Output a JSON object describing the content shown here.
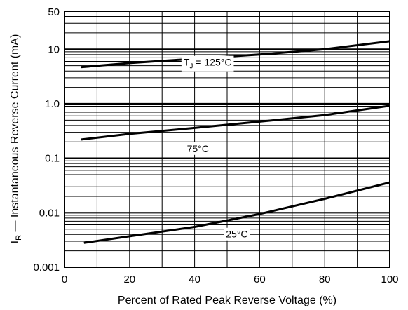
{
  "chart_data": {
    "type": "line",
    "title": "",
    "xlabel": "Percent of Rated Peak Reverse Voltage (%)",
    "ylabel_subscript": "R",
    "ylabel_main": "I",
    "ylabel_rest": " — Instantaneous Reverse Current (mA)",
    "xlim": [
      0,
      100
    ],
    "ylim": [
      0.001,
      50
    ],
    "yscale": "log",
    "grid": true,
    "x_ticks": [
      0,
      20,
      40,
      60,
      80,
      100
    ],
    "x_tick_labels": [
      "0",
      "20",
      "40",
      "60",
      "80",
      "100"
    ],
    "y_ticks": [
      0.001,
      0.01,
      0.1,
      1.0,
      10,
      50
    ],
    "y_tick_labels": [
      "0.001",
      "0.01",
      "0.1",
      "1.0",
      "10",
      "50"
    ],
    "series": [
      {
        "label": "TJ = 125°C",
        "label_main": "T",
        "label_sub": "J",
        "label_rest": " = 125°C",
        "label_at": [
          44,
          5.0
        ],
        "x": [
          5,
          20,
          40,
          60,
          80,
          100
        ],
        "y": [
          4.7,
          5.6,
          6.7,
          8.0,
          10.0,
          14.0
        ]
      },
      {
        "label": "75°C",
        "label_main": "75°C",
        "label_sub": "",
        "label_rest": "",
        "label_at": [
          41,
          0.13
        ],
        "x": [
          5,
          20,
          40,
          60,
          80,
          100
        ],
        "y": [
          0.22,
          0.28,
          0.36,
          0.47,
          0.62,
          0.92
        ]
      },
      {
        "label": "25°C",
        "label_main": "25°C",
        "label_sub": "",
        "label_rest": "",
        "label_at": [
          53,
          0.0035
        ],
        "x": [
          6,
          20,
          40,
          60,
          80,
          100
        ],
        "y": [
          0.0028,
          0.0037,
          0.0055,
          0.0095,
          0.018,
          0.036
        ]
      }
    ]
  }
}
